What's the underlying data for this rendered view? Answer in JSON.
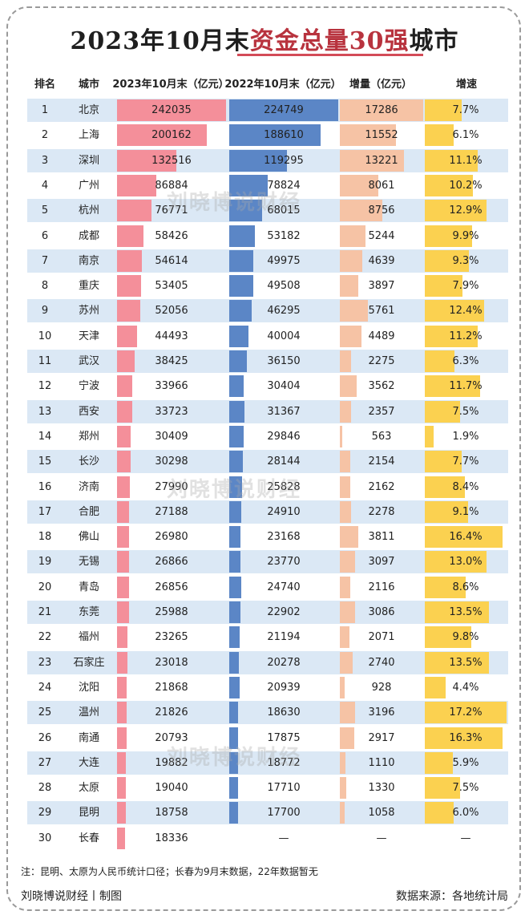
{
  "title": {
    "pre": "2023年10月末",
    "highlight": "资金总量30强",
    "post": "城市"
  },
  "headers": {
    "rank": "排名",
    "city": "城市",
    "y2023": "2023年10月末（亿元）",
    "y2022": "2022年10月末（亿元）",
    "increase": "增量（亿元）",
    "growth": "增速"
  },
  "chart_data": {
    "type": "table",
    "columns": [
      "排名",
      "城市",
      "2023年10月末（亿元）",
      "2022年10月末（亿元）",
      "增量（亿元）",
      "增速"
    ],
    "rows": [
      {
        "rank": "1",
        "city": "北京",
        "v2023": 242035,
        "v2022": 224749,
        "inc": 17286,
        "growth": "7.7%",
        "g": 7.7
      },
      {
        "rank": "2",
        "city": "上海",
        "v2023": 200162,
        "v2022": 188610,
        "inc": 11552,
        "growth": "6.1%",
        "g": 6.1
      },
      {
        "rank": "3",
        "city": "深圳",
        "v2023": 132516,
        "v2022": 119295,
        "inc": 13221,
        "growth": "11.1%",
        "g": 11.1
      },
      {
        "rank": "4",
        "city": "广州",
        "v2023": 86884,
        "v2022": 78824,
        "inc": 8061,
        "growth": "10.2%",
        "g": 10.2
      },
      {
        "rank": "5",
        "city": "杭州",
        "v2023": 76771,
        "v2022": 68015,
        "inc": 8756,
        "growth": "12.9%",
        "g": 12.9
      },
      {
        "rank": "6",
        "city": "成都",
        "v2023": 58426,
        "v2022": 53182,
        "inc": 5244,
        "growth": "9.9%",
        "g": 9.9
      },
      {
        "rank": "7",
        "city": "南京",
        "v2023": 54614,
        "v2022": 49975,
        "inc": 4639,
        "growth": "9.3%",
        "g": 9.3
      },
      {
        "rank": "8",
        "city": "重庆",
        "v2023": 53405,
        "v2022": 49508,
        "inc": 3897,
        "growth": "7.9%",
        "g": 7.9
      },
      {
        "rank": "9",
        "city": "苏州",
        "v2023": 52056,
        "v2022": 46295,
        "inc": 5761,
        "growth": "12.4%",
        "g": 12.4
      },
      {
        "rank": "10",
        "city": "天津",
        "v2023": 44493,
        "v2022": 40004,
        "inc": 4489,
        "growth": "11.2%",
        "g": 11.2
      },
      {
        "rank": "11",
        "city": "武汉",
        "v2023": 38425,
        "v2022": 36150,
        "inc": 2275,
        "growth": "6.3%",
        "g": 6.3
      },
      {
        "rank": "12",
        "city": "宁波",
        "v2023": 33966,
        "v2022": 30404,
        "inc": 3562,
        "growth": "11.7%",
        "g": 11.7
      },
      {
        "rank": "13",
        "city": "西安",
        "v2023": 33723,
        "v2022": 31367,
        "inc": 2357,
        "growth": "7.5%",
        "g": 7.5
      },
      {
        "rank": "14",
        "city": "郑州",
        "v2023": 30409,
        "v2022": 29846,
        "inc": 563,
        "growth": "1.9%",
        "g": 1.9
      },
      {
        "rank": "15",
        "city": "长沙",
        "v2023": 30298,
        "v2022": 28144,
        "inc": 2154,
        "growth": "7.7%",
        "g": 7.7
      },
      {
        "rank": "16",
        "city": "济南",
        "v2023": 27990,
        "v2022": 25828,
        "inc": 2162,
        "growth": "8.4%",
        "g": 8.4
      },
      {
        "rank": "17",
        "city": "合肥",
        "v2023": 27188,
        "v2022": 24910,
        "inc": 2278,
        "growth": "9.1%",
        "g": 9.1
      },
      {
        "rank": "18",
        "city": "佛山",
        "v2023": 26980,
        "v2022": 23168,
        "inc": 3811,
        "growth": "16.4%",
        "g": 16.4
      },
      {
        "rank": "19",
        "city": "无锡",
        "v2023": 26866,
        "v2022": 23770,
        "inc": 3097,
        "growth": "13.0%",
        "g": 13.0
      },
      {
        "rank": "20",
        "city": "青岛",
        "v2023": 26856,
        "v2022": 24740,
        "inc": 2116,
        "growth": "8.6%",
        "g": 8.6
      },
      {
        "rank": "21",
        "city": "东莞",
        "v2023": 25988,
        "v2022": 22902,
        "inc": 3086,
        "growth": "13.5%",
        "g": 13.5
      },
      {
        "rank": "22",
        "city": "福州",
        "v2023": 23265,
        "v2022": 21194,
        "inc": 2071,
        "growth": "9.8%",
        "g": 9.8
      },
      {
        "rank": "23",
        "city": "石家庄",
        "v2023": 23018,
        "v2022": 20278,
        "inc": 2740,
        "growth": "13.5%",
        "g": 13.5
      },
      {
        "rank": "24",
        "city": "沈阳",
        "v2023": 21868,
        "v2022": 20939,
        "inc": 928,
        "growth": "4.4%",
        "g": 4.4
      },
      {
        "rank": "25",
        "city": "温州",
        "v2023": 21826,
        "v2022": 18630,
        "inc": 3196,
        "growth": "17.2%",
        "g": 17.2
      },
      {
        "rank": "26",
        "city": "南通",
        "v2023": 20793,
        "v2022": 17875,
        "inc": 2917,
        "growth": "16.3%",
        "g": 16.3
      },
      {
        "rank": "27",
        "city": "大连",
        "v2023": 19882,
        "v2022": 18772,
        "inc": 1110,
        "growth": "5.9%",
        "g": 5.9
      },
      {
        "rank": "28",
        "city": "太原",
        "v2023": 19040,
        "v2022": 17710,
        "inc": 1330,
        "growth": "7.5%",
        "g": 7.5
      },
      {
        "rank": "29",
        "city": "昆明",
        "v2023": 18758,
        "v2022": 17700,
        "inc": 1058,
        "growth": "6.0%",
        "g": 6.0
      },
      {
        "rank": "30",
        "city": "长春",
        "v2023": 18336,
        "v2022": null,
        "inc": null,
        "growth": null,
        "g": null
      }
    ],
    "missing_mark": "—"
  },
  "colors": {
    "bar_2023": "#f48f9a",
    "bar_2022": "#5b86c6",
    "bar_increase": "#f6c3a5",
    "bar_growth": "#fbd150",
    "row_stripe": "#dbe8f5",
    "title_highlight": "#b8333e"
  },
  "note": "注：昆明、太原为人民币统计口径；长春为9月末数据，22年数据暂无",
  "footer": {
    "left": "刘晓博说财经丨制图",
    "right": "数据来源：各地统计局"
  },
  "watermark": "刘晓博说财经"
}
